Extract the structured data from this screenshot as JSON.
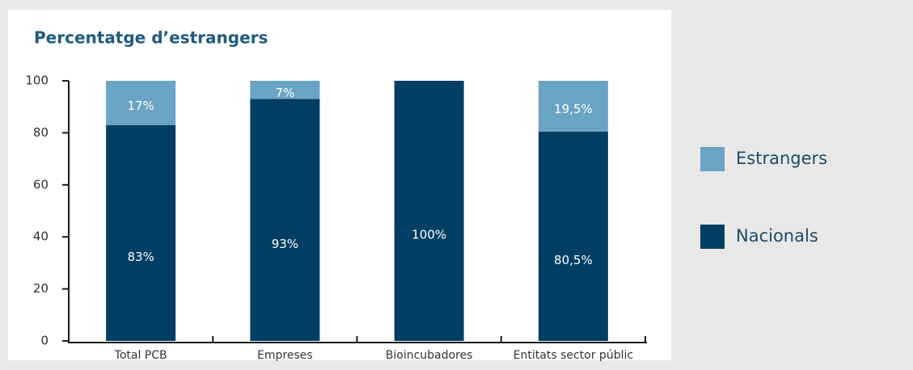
{
  "chart_data": {
    "type": "stacked_bar",
    "title": "Percentatge d’estrangers",
    "categories": [
      "Total PCB",
      "Empreses",
      "Bioincubadores",
      "Entitats sector públic"
    ],
    "series": [
      {
        "name": "Nacionals",
        "color": "#003f63",
        "values": [
          83,
          93,
          100,
          80.5
        ],
        "value_labels": [
          "83%",
          "93%",
          "100%",
          "80,5%"
        ]
      },
      {
        "name": "Estrangers",
        "color": "#6aa4c5",
        "values": [
          17,
          7,
          0,
          19.5
        ],
        "value_labels": [
          "17%",
          "7%",
          null,
          "19,5%"
        ]
      }
    ],
    "ylim": [
      0,
      100
    ],
    "yticks": [
      0,
      20,
      40,
      60,
      80,
      100
    ],
    "legend": "right"
  }
}
